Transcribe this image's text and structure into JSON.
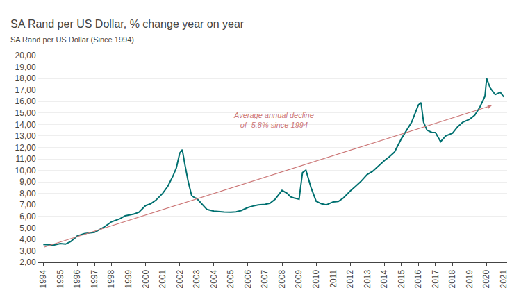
{
  "chart_data": {
    "type": "line",
    "title": "SA Rand per US Dollar, % change year on year",
    "subtitle": "SA Rand per US Dollar (Since 1994)",
    "series": [
      {
        "color": "#007070",
        "x": [
          1994.0,
          1994.3,
          1994.6,
          1995.0,
          1995.3,
          1995.6,
          1996.0,
          1996.4,
          1996.8,
          1997.0,
          1997.3,
          1997.6,
          1998.0,
          1998.2,
          1998.5,
          1998.8,
          1999.0,
          1999.3,
          1999.6,
          2000.0,
          2000.3,
          2000.6,
          2001.0,
          2001.3,
          2001.6,
          2001.8,
          2002.0,
          2002.15,
          2002.3,
          2002.5,
          2002.7,
          2002.9,
          2003.0,
          2003.3,
          2003.6,
          2004.0,
          2004.3,
          2004.6,
          2005.0,
          2005.3,
          2005.6,
          2006.0,
          2006.3,
          2006.6,
          2007.0,
          2007.3,
          2007.6,
          2008.0,
          2008.3,
          2008.5,
          2008.7,
          2009.0,
          2009.2,
          2009.4,
          2009.7,
          2010.0,
          2010.3,
          2010.6,
          2011.0,
          2011.3,
          2011.6,
          2012.0,
          2012.3,
          2012.6,
          2013.0,
          2013.3,
          2013.6,
          2014.0,
          2014.3,
          2014.6,
          2015.0,
          2015.3,
          2015.6,
          2016.0,
          2016.15,
          2016.3,
          2016.5,
          2016.8,
          2017.0,
          2017.3,
          2017.6,
          2018.0,
          2018.3,
          2018.6,
          2019.0,
          2019.3,
          2019.6,
          2019.9,
          2020.0,
          2020.2,
          2020.5,
          2020.8,
          2021.0
        ],
        "values": [
          3.55,
          3.52,
          3.5,
          3.63,
          3.58,
          3.8,
          4.3,
          4.5,
          4.55,
          4.61,
          4.85,
          5.1,
          5.53,
          5.65,
          5.8,
          6.05,
          6.11,
          6.2,
          6.35,
          6.94,
          7.1,
          7.4,
          8.0,
          8.61,
          9.5,
          10.2,
          11.5,
          11.8,
          10.54,
          9.0,
          7.8,
          7.6,
          7.56,
          7.1,
          6.6,
          6.45,
          6.4,
          6.38,
          6.36,
          6.4,
          6.5,
          6.77,
          6.9,
          7.0,
          7.05,
          7.15,
          7.5,
          8.26,
          8.0,
          7.7,
          7.6,
          7.5,
          9.8,
          10.02,
          8.5,
          7.32,
          7.1,
          7.0,
          7.26,
          7.3,
          7.6,
          8.21,
          8.6,
          9.0,
          9.65,
          9.9,
          10.3,
          10.85,
          11.2,
          11.6,
          12.76,
          13.5,
          14.2,
          15.7,
          15.9,
          14.2,
          13.5,
          13.3,
          13.3,
          12.5,
          13.0,
          13.24,
          13.8,
          14.2,
          14.45,
          14.8,
          15.5,
          16.46,
          18.0,
          17.2,
          16.6,
          16.8,
          16.4
        ]
      },
      {
        "type": "arrow",
        "color": "#cc7777",
        "x": [
          1994,
          2020.3
        ],
        "values": [
          3.3,
          15.65
        ]
      }
    ],
    "annotations": [
      {
        "text": "Average annual decline\nof -5.8% since 1994",
        "x": 2007.5,
        "y": 13.5,
        "color": "#cc7777"
      }
    ],
    "xlim": [
      1993.7,
      2021.2
    ],
    "xticks": [
      1994,
      1995,
      1996,
      1997,
      1998,
      1999,
      2000,
      2001,
      2002,
      2003,
      2004,
      2005,
      2006,
      2007,
      2008,
      2009,
      2010,
      2011,
      2012,
      2013,
      2014,
      2015,
      2016,
      2017,
      2018,
      2019,
      2020,
      2021
    ],
    "ylim": [
      2.0,
      20.0
    ],
    "yticks": [
      {
        "value": 2.0,
        "label": "2,00"
      },
      {
        "value": 3.0,
        "label": "3,00"
      },
      {
        "value": 4.0,
        "label": "4,00"
      },
      {
        "value": 5.0,
        "label": "5,00"
      },
      {
        "value": 6.0,
        "label": "6,00"
      },
      {
        "value": 7.0,
        "label": "7,00"
      },
      {
        "value": 8.0,
        "label": "8,00"
      },
      {
        "value": 9.0,
        "label": "9,00"
      },
      {
        "value": 10.0,
        "label": "10,00"
      },
      {
        "value": 11.0,
        "label": "11,00"
      },
      {
        "value": 12.0,
        "label": "12,00"
      },
      {
        "value": 13.0,
        "label": "13,00"
      },
      {
        "value": 14.0,
        "label": "14,00"
      },
      {
        "value": 15.0,
        "label": "15,00"
      },
      {
        "value": 16.0,
        "label": "16,00"
      },
      {
        "value": 17.0,
        "label": "17,00"
      },
      {
        "value": 18.0,
        "label": "18,00"
      },
      {
        "value": 19.0,
        "label": "19,00"
      },
      {
        "value": 20.0,
        "label": "20,00"
      }
    ],
    "grid": true
  }
}
